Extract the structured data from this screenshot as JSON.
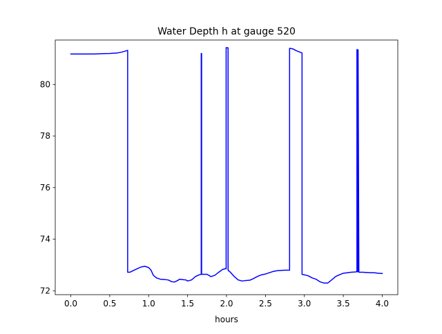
{
  "chart_data": {
    "type": "line",
    "title": "Water Depth h at gauge 520",
    "xlabel": "hours",
    "ylabel": "",
    "xlim": [
      -0.2,
      4.2
    ],
    "ylim": [
      71.85,
      81.72
    ],
    "xticks": [
      "0.0",
      "0.5",
      "1.0",
      "1.5",
      "2.0",
      "2.5",
      "3.0",
      "3.5",
      "4.0"
    ],
    "xtick_values": [
      0.0,
      0.5,
      1.0,
      1.5,
      2.0,
      2.5,
      3.0,
      3.5,
      4.0
    ],
    "yticks": [
      "72",
      "74",
      "76",
      "78",
      "80"
    ],
    "ytick_values": [
      72,
      74,
      76,
      78,
      80
    ],
    "grid": false,
    "legend": "none",
    "series": [
      {
        "color": "#0000ff",
        "x": [
          0.0,
          0.1,
          0.2,
          0.3,
          0.4,
          0.5,
          0.6,
          0.65,
          0.7,
          0.73,
          0.73,
          0.76,
          0.8,
          0.85,
          0.9,
          0.95,
          1.0,
          1.03,
          1.06,
          1.1,
          1.15,
          1.2,
          1.25,
          1.3,
          1.33,
          1.36,
          1.4,
          1.45,
          1.48,
          1.5,
          1.55,
          1.6,
          1.65,
          1.675,
          1.675,
          1.68,
          1.68,
          1.7,
          1.75,
          1.8,
          1.85,
          1.9,
          1.95,
          1.99,
          1.995,
          1.995,
          2.0,
          2.02,
          2.02,
          2.025,
          2.025,
          2.05,
          2.1,
          2.15,
          2.2,
          2.25,
          2.3,
          2.35,
          2.4,
          2.45,
          2.5,
          2.55,
          2.6,
          2.65,
          2.7,
          2.75,
          2.8,
          2.81,
          2.81,
          2.85,
          2.9,
          2.97,
          2.97,
          3.0,
          3.05,
          3.1,
          3.15,
          3.2,
          3.25,
          3.3,
          3.35,
          3.4,
          3.45,
          3.5,
          3.55,
          3.6,
          3.65,
          3.675,
          3.675,
          3.68,
          3.68,
          3.69,
          3.69,
          3.7,
          3.75,
          3.8,
          3.85,
          3.9,
          3.95,
          4.0
        ],
        "y": [
          81.18,
          81.18,
          81.18,
          81.18,
          81.19,
          81.2,
          81.22,
          81.25,
          81.29,
          81.32,
          72.72,
          72.72,
          72.78,
          72.85,
          72.92,
          72.95,
          72.9,
          72.8,
          72.6,
          72.5,
          72.45,
          72.44,
          72.42,
          72.35,
          72.34,
          72.38,
          72.45,
          72.43,
          72.42,
          72.38,
          72.42,
          72.55,
          72.62,
          72.64,
          81.2,
          81.2,
          72.64,
          72.64,
          72.64,
          72.55,
          72.6,
          72.72,
          72.83,
          72.86,
          72.85,
          81.43,
          81.42,
          81.42,
          72.8,
          72.8,
          72.78,
          72.72,
          72.55,
          72.42,
          72.38,
          72.4,
          72.41,
          72.48,
          72.56,
          72.62,
          72.65,
          72.7,
          72.75,
          72.78,
          72.79,
          72.8,
          72.8,
          72.8,
          81.4,
          81.38,
          81.3,
          81.22,
          72.64,
          72.62,
          72.58,
          72.5,
          72.45,
          72.35,
          72.3,
          72.3,
          72.42,
          72.55,
          72.62,
          72.68,
          72.7,
          72.72,
          72.73,
          72.74,
          81.35,
          81.35,
          72.74,
          72.74,
          81.34,
          72.72,
          72.72,
          72.71,
          72.7,
          72.7,
          72.68,
          72.67
        ]
      }
    ]
  }
}
